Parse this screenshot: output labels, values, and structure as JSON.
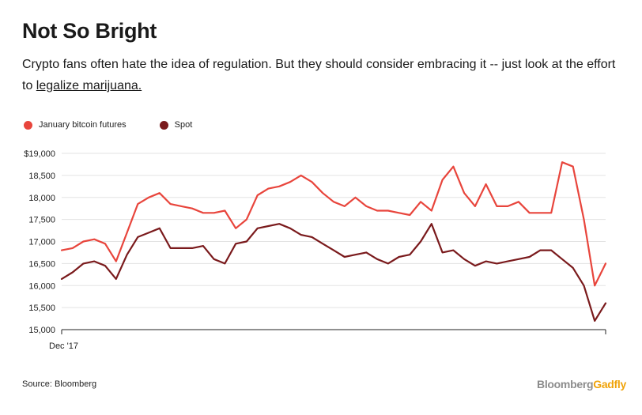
{
  "header": {
    "title": "Not So Bright",
    "subtitle_before": "Crypto fans often hate the idea of regulation. But they should consider embracing it -- just look at the effort to ",
    "subtitle_link": "legalize marijuana.",
    "subtitle_after": ""
  },
  "footer": {
    "source": "Source: Bloomberg",
    "brand_part1": "Bloomberg",
    "brand_part2": "Gadfly"
  },
  "colors": {
    "futures": "#e8453c",
    "spot": "#7a1a1c",
    "grid": "#e3e3e3",
    "brand_gray": "#8c8c8c",
    "brand_orange": "#f0a30a"
  },
  "chart_data": {
    "type": "line",
    "title": "Not So Bright",
    "xlabel": "",
    "ylabel": "",
    "ylim": [
      15000,
      19000
    ],
    "yticks": [
      15000,
      15500,
      16000,
      16500,
      17000,
      17500,
      18000,
      18500,
      19000
    ],
    "ytick_labels": [
      "15,000",
      "15,500",
      "16,000",
      "16,500",
      "17,000",
      "17,500",
      "18,000",
      "18,500",
      "$19,000"
    ],
    "xtick_labels": [
      "Dec '17"
    ],
    "legend_position": "top-left",
    "grid": true,
    "x": [
      0,
      2,
      4,
      6,
      8,
      10,
      12,
      14,
      16,
      18,
      20,
      22,
      24,
      26,
      28,
      30,
      32,
      34,
      36,
      38,
      40,
      42,
      44,
      46,
      48,
      50,
      52,
      54,
      56,
      58,
      60,
      62,
      64,
      66,
      68,
      70,
      72,
      74,
      76,
      78,
      80,
      82,
      84,
      86,
      88,
      90,
      92,
      94,
      96,
      98,
      100
    ],
    "series": [
      {
        "name": "January bitcoin futures",
        "values": [
          16800,
          16850,
          17000,
          17050,
          16950,
          16550,
          17200,
          17850,
          18000,
          18100,
          17850,
          17800,
          17750,
          17650,
          17650,
          17700,
          17300,
          17500,
          18050,
          18200,
          18250,
          18350,
          18500,
          18350,
          18100,
          17900,
          17800,
          18000,
          17800,
          17700,
          17700,
          17650,
          17600,
          17900,
          17700,
          18400,
          18700,
          18100,
          17800,
          18300,
          17800,
          17800,
          17900,
          17650,
          17650,
          17650,
          18800,
          18700,
          17500,
          16000,
          16500
        ]
      },
      {
        "name": "Spot",
        "values": [
          16150,
          16300,
          16500,
          16550,
          16450,
          16150,
          16700,
          17100,
          17200,
          17300,
          16850,
          16850,
          16850,
          16900,
          16600,
          16500,
          16950,
          17000,
          17300,
          17350,
          17400,
          17300,
          17150,
          17100,
          16950,
          16800,
          16650,
          16700,
          16750,
          16600,
          16500,
          16650,
          16700,
          17000,
          17400,
          16750,
          16800,
          16600,
          16450,
          16550,
          16500,
          16550,
          16600,
          16650,
          16800,
          16800,
          16600,
          16400,
          16000,
          15200,
          15600
        ]
      }
    ]
  }
}
